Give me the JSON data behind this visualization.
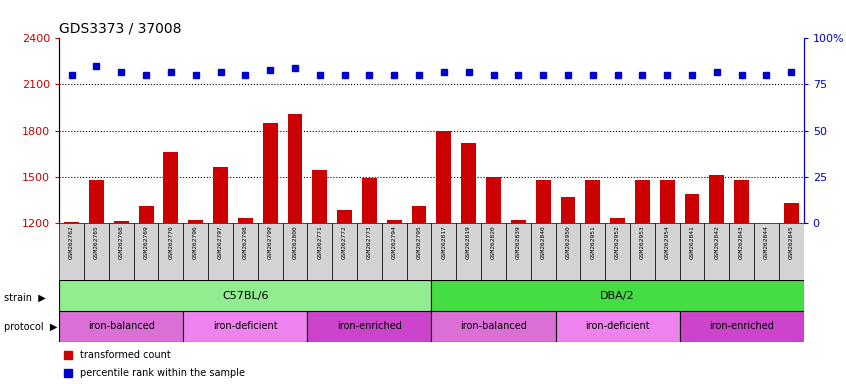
{
  "title": "GDS3373 / 37008",
  "samples": [
    "GSM262762",
    "GSM262765",
    "GSM262768",
    "GSM262769",
    "GSM262770",
    "GSM262796",
    "GSM262797",
    "GSM262798",
    "GSM262799",
    "GSM262800",
    "GSM262771",
    "GSM262772",
    "GSM262773",
    "GSM262794",
    "GSM262795",
    "GSM262817",
    "GSM262819",
    "GSM262820",
    "GSM262839",
    "GSM262840",
    "GSM262950",
    "GSM262951",
    "GSM262952",
    "GSM262953",
    "GSM262954",
    "GSM262841",
    "GSM262842",
    "GSM262843",
    "GSM262844",
    "GSM262845"
  ],
  "transformed_count": [
    1205,
    1480,
    1210,
    1310,
    1660,
    1215,
    1560,
    1230,
    1850,
    1910,
    1540,
    1280,
    1490,
    1220,
    1310,
    1800,
    1720,
    1500,
    1215,
    1480,
    1370,
    1480,
    1230,
    1480,
    1480,
    1390,
    1510,
    1480,
    1200,
    1330
  ],
  "percentile_rank": [
    80,
    85,
    82,
    80,
    82,
    80,
    82,
    80,
    83,
    84,
    80,
    80,
    80,
    80,
    80,
    82,
    82,
    80,
    80,
    80,
    80,
    80,
    80,
    80,
    80,
    80,
    82,
    80,
    80,
    82
  ],
  "strain_groups": [
    {
      "label": "C57BL/6",
      "start": 0,
      "end": 14,
      "color": "#90ee90"
    },
    {
      "label": "DBA/2",
      "start": 15,
      "end": 29,
      "color": "#44dd44"
    }
  ],
  "protocol_groups": [
    {
      "label": "iron-balanced",
      "start": 0,
      "end": 4,
      "color": "#da70d6"
    },
    {
      "label": "iron-deficient",
      "start": 5,
      "end": 9,
      "color": "#ee82ee"
    },
    {
      "label": "iron-enriched",
      "start": 10,
      "end": 14,
      "color": "#cc44cc"
    },
    {
      "label": "iron-balanced",
      "start": 15,
      "end": 19,
      "color": "#da70d6"
    },
    {
      "label": "iron-deficient",
      "start": 20,
      "end": 24,
      "color": "#ee82ee"
    },
    {
      "label": "iron-enriched",
      "start": 25,
      "end": 29,
      "color": "#cc44cc"
    }
  ],
  "ylim_left": [
    1200,
    2400
  ],
  "ylim_right": [
    0,
    100
  ],
  "yticks_left": [
    1200,
    1500,
    1800,
    2100,
    2400
  ],
  "yticks_right": [
    0,
    25,
    50,
    75,
    100
  ],
  "bar_color": "#cc0000",
  "dot_color": "#0000cc",
  "background_color": "#ffffff",
  "tick_label_color_left": "#cc0000",
  "tick_label_color_right": "#0000cc"
}
